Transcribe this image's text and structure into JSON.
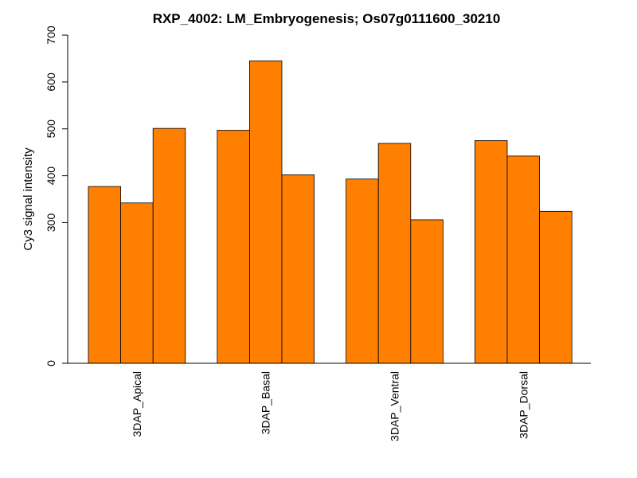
{
  "chart_data": {
    "type": "bar",
    "title": "RXP_4002: LM_Embryogenesis; Os07g0111600_30210",
    "xlabel": "",
    "ylabel": "Cy3 signal intensity",
    "categories": [
      "3DAP_Apical",
      "3DAP_Basal",
      "3DAP_Ventral",
      "3DAP_Dorsal"
    ],
    "bars_per_category": 3,
    "values": [
      [
        377,
        342,
        501
      ],
      [
        497,
        645,
        402
      ],
      [
        393,
        469,
        306
      ],
      [
        475,
        442,
        324
      ]
    ],
    "y_ticks": [
      0,
      300,
      400,
      500,
      600,
      700
    ],
    "ylim": [
      0,
      700
    ],
    "grid": false,
    "legend": "none",
    "bar_color": "#ff7f00",
    "edge_color": "#000000"
  }
}
